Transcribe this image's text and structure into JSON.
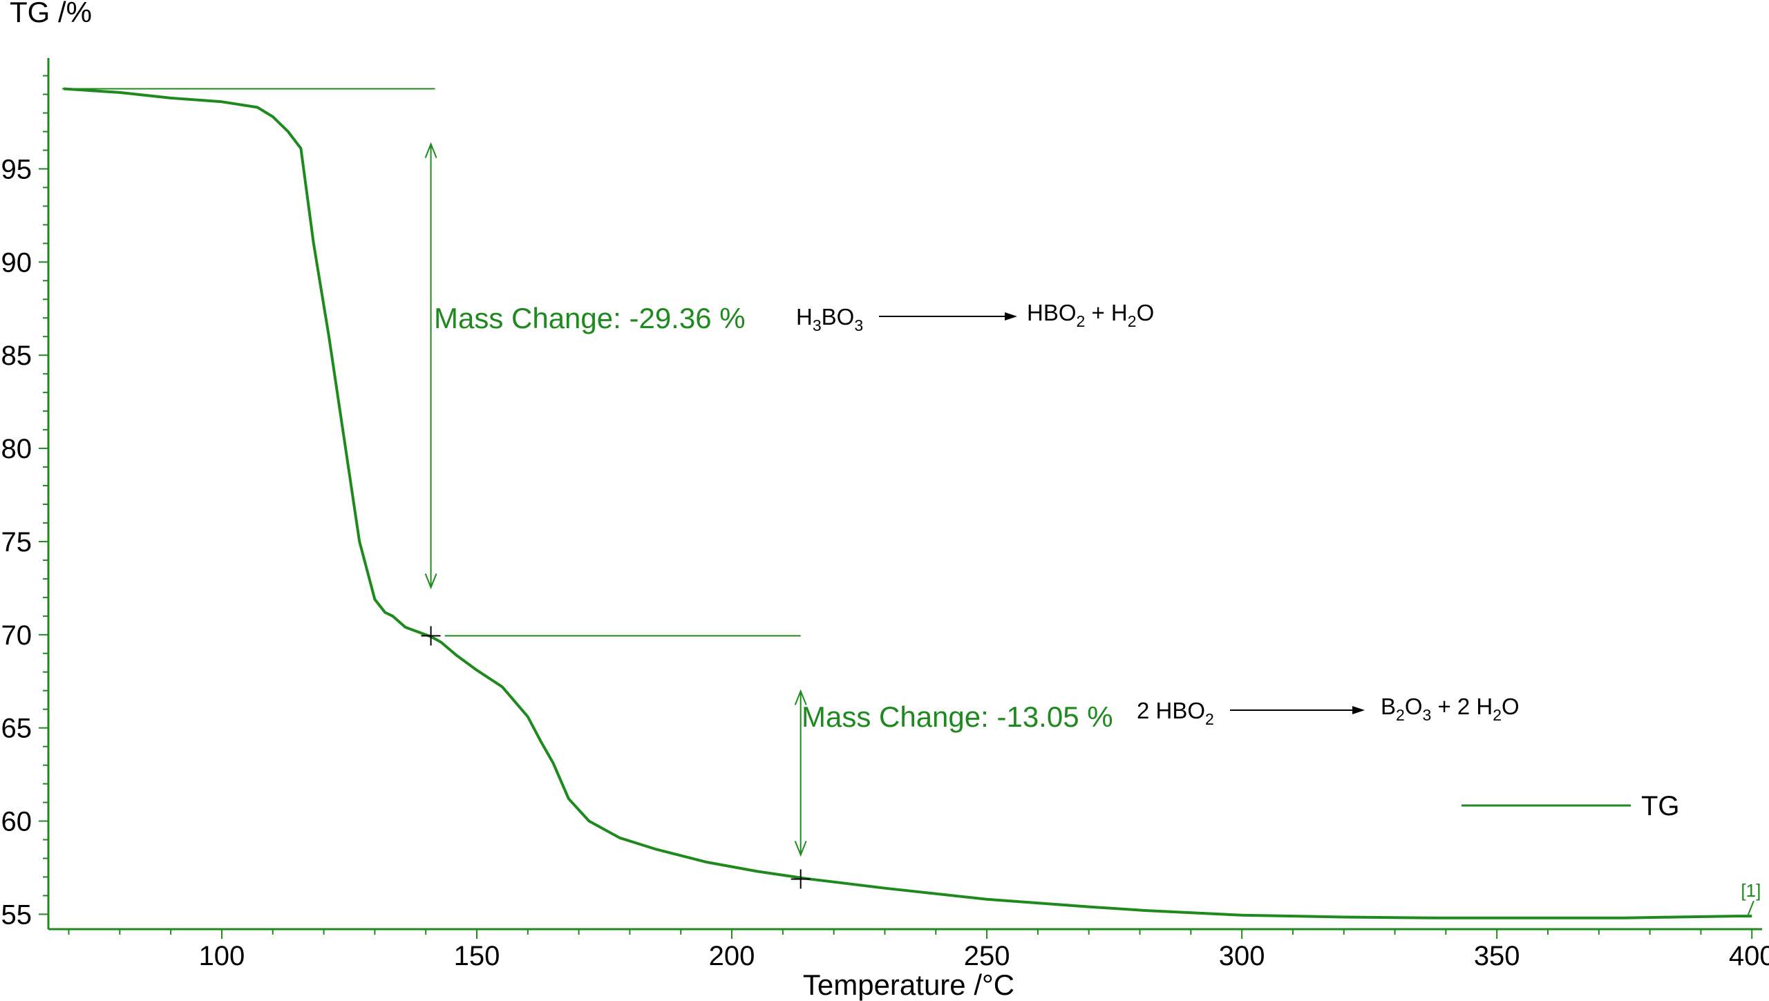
{
  "chart_data": {
    "type": "line",
    "xlabel": "Temperature /°C",
    "ylabel": "TG /%",
    "xlim": [
      66,
      402
    ],
    "ylim": [
      54.2,
      100.8
    ],
    "x_ticks": [
      100,
      150,
      200,
      250,
      300,
      350,
      400
    ],
    "y_ticks": [
      55,
      60,
      65,
      70,
      75,
      80,
      85,
      90,
      95
    ],
    "x_tick_labels": [
      "100",
      "150",
      "200",
      "250",
      "300",
      "350",
      "400"
    ],
    "y_tick_labels": [
      "55",
      "60",
      "65",
      "70",
      "75",
      "80",
      "85",
      "90",
      "95"
    ],
    "grid": false,
    "legend_position": "right",
    "series": [
      {
        "name": "TG",
        "color": "#1e8a1e",
        "x": [
          69,
          80,
          90,
          100,
          107,
          110,
          113,
          115.5,
          118,
          121,
          124,
          127,
          130,
          132,
          133.5,
          136,
          139,
          141,
          143,
          146,
          150,
          155,
          160,
          162.5,
          165,
          168,
          172,
          178,
          185,
          195,
          205,
          215,
          230,
          250,
          270,
          281,
          300,
          320,
          338,
          360,
          375,
          385,
          397,
          400
        ],
        "y": [
          99.3,
          99.1,
          98.8,
          98.6,
          98.3,
          97.8,
          97.0,
          96.1,
          91.0,
          86.0,
          80.5,
          75.0,
          71.9,
          71.2,
          71.0,
          70.4,
          70.1,
          69.9,
          69.6,
          68.9,
          68.1,
          67.2,
          65.6,
          64.3,
          63.1,
          61.2,
          60.0,
          59.1,
          58.5,
          57.8,
          57.3,
          56.9,
          56.4,
          55.8,
          55.4,
          55.2,
          54.95,
          54.85,
          54.8,
          54.8,
          54.8,
          54.85,
          54.9,
          54.9
        ]
      }
    ],
    "steps": [
      {
        "label": "Mass Change: -29.36 %",
        "from_x": 66,
        "to_x": 141,
        "top_y": 99.3,
        "bottom_y": 69.94,
        "arrow_x": 141,
        "marker": [
          141,
          69.94
        ],
        "reaction": {
          "reactant": [
            [
              "H",
              ""
            ],
            [
              "3",
              "sub"
            ],
            [
              "BO",
              ""
            ],
            [
              "3",
              "sub"
            ]
          ],
          "product": [
            [
              "HBO",
              ""
            ],
            [
              "2",
              "sub"
            ],
            [
              " + H",
              ""
            ],
            [
              "2",
              "sub"
            ],
            [
              "O",
              ""
            ]
          ]
        }
      },
      {
        "label": "Mass Change: -13.05 %",
        "from_x": 141,
        "to_x": 213.5,
        "top_y": 69.94,
        "bottom_y": 56.89,
        "arrow_x": 213.5,
        "marker": [
          213.5,
          56.89
        ],
        "reaction": {
          "reactant": [
            [
              "2 HBO",
              ""
            ],
            [
              "2",
              "sub"
            ]
          ],
          "product": [
            [
              "B",
              ""
            ],
            [
              "2",
              "sub"
            ],
            [
              "O",
              ""
            ],
            [
              "3",
              "sub"
            ],
            [
              " + 2 H",
              ""
            ],
            [
              "2",
              "sub"
            ],
            [
              "O",
              ""
            ]
          ]
        }
      }
    ],
    "curve_tag": "[1]",
    "curve_tag_at": [
      399,
      54.9
    ]
  }
}
